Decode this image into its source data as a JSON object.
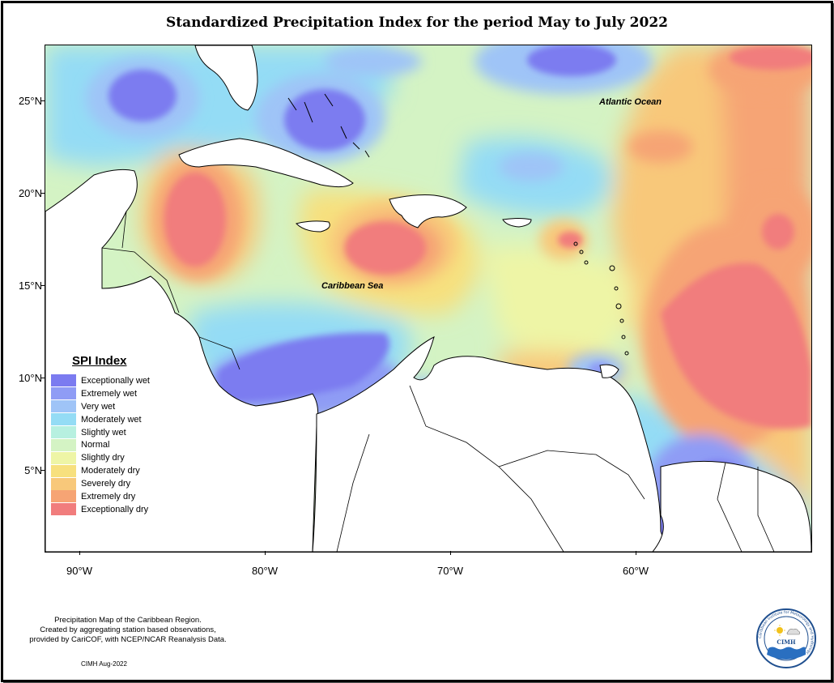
{
  "title": "Standardized Precipitation Index for the period May to July 2022",
  "axes": {
    "y_ticks": [
      "25°N",
      "20°N",
      "15°N",
      "10°N",
      "5°N"
    ],
    "x_ticks": [
      "90°W",
      "80°W",
      "70°W",
      "60°W"
    ]
  },
  "map_labels": {
    "atlantic": "Atlantic Ocean",
    "caribbean": "Caribbean Sea"
  },
  "legend": {
    "title": "SPI Index",
    "items": [
      {
        "label": "Exceptionally wet",
        "color": "#7b7bf0"
      },
      {
        "label": "Extremely wet",
        "color": "#8f9cf5"
      },
      {
        "label": "Very wet",
        "color": "#9fc4f7"
      },
      {
        "label": "Moderately wet",
        "color": "#94dcf5"
      },
      {
        "label": "Slightly wet",
        "color": "#b7f0e0"
      },
      {
        "label": "Normal",
        "color": "#d4f3c4"
      },
      {
        "label": "Slightly dry",
        "color": "#eef5a6"
      },
      {
        "label": "Moderately dry",
        "color": "#f7e07e"
      },
      {
        "label": "Severely dry",
        "color": "#f8c87a"
      },
      {
        "label": "Extremely dry",
        "color": "#f6a474"
      },
      {
        "label": "Exceptionally dry",
        "color": "#f17d7d"
      }
    ]
  },
  "footnote": {
    "line1": "Precipitation Map of the Caribbean Region.",
    "line2": "Created by aggregating station based observations,",
    "line3": "provided by CariCOF, with NCEP/NCAR Reanalysis Data."
  },
  "credit": "CIMH Aug-2022",
  "logo": {
    "text": "CIMH",
    "ring_text": "Caribbean Institute for Meteorology and Hydrology"
  }
}
